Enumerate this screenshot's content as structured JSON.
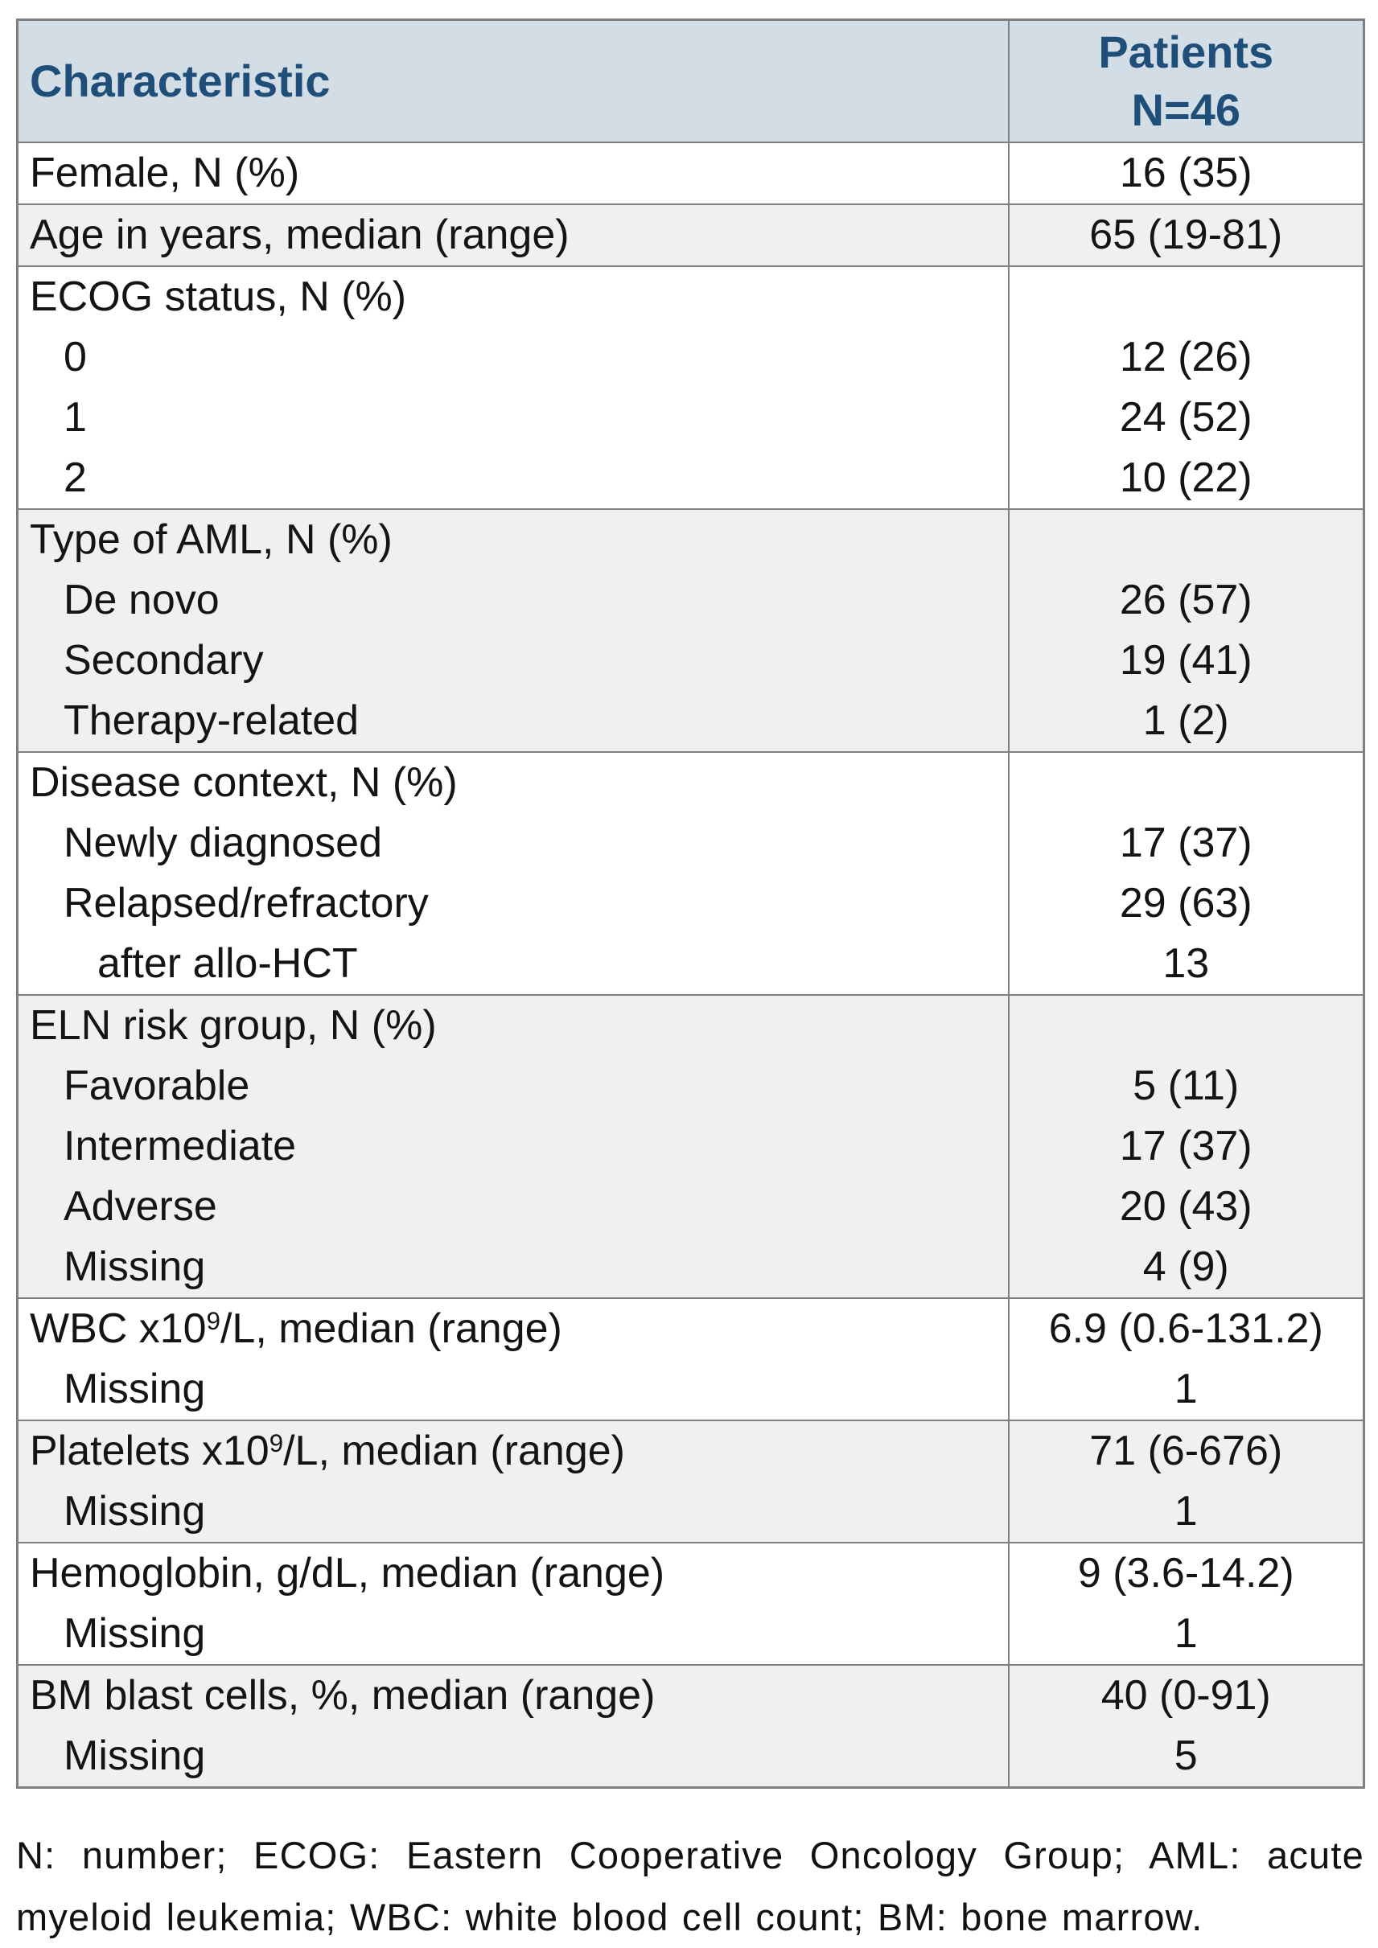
{
  "colors": {
    "header_bg": "#d2dde6",
    "header_text": "#1f4e79",
    "gray_row": "#f0f0f0",
    "border": "#7f7f7f",
    "text": "#141414"
  },
  "table": {
    "header": {
      "characteristic": "Characteristic",
      "patients_line1": "Patients",
      "patients_line2": "N=46"
    },
    "sections": [
      {
        "bg": "white",
        "lines": [
          {
            "label": [
              {
                "t": "Female, N (%)"
              }
            ],
            "indent": 0,
            "value": "16 (35)"
          }
        ]
      },
      {
        "bg": "gray",
        "lines": [
          {
            "label": [
              {
                "t": "Age in years, median (range)"
              }
            ],
            "indent": 0,
            "value": "65 (19-81)"
          }
        ]
      },
      {
        "bg": "white",
        "lines": [
          {
            "label": [
              {
                "t": "ECOG status, N (%)"
              }
            ],
            "indent": 0,
            "value": ""
          },
          {
            "label": [
              {
                "t": "0"
              }
            ],
            "indent": 1,
            "value": "12 (26)"
          },
          {
            "label": [
              {
                "t": "1"
              }
            ],
            "indent": 1,
            "value": "24 (52)"
          },
          {
            "label": [
              {
                "t": "2"
              }
            ],
            "indent": 1,
            "value": "10 (22)"
          }
        ]
      },
      {
        "bg": "gray",
        "lines": [
          {
            "label": [
              {
                "t": "Type of AML, N (%)"
              }
            ],
            "indent": 0,
            "value": ""
          },
          {
            "label": [
              {
                "t": "De novo"
              }
            ],
            "indent": 1,
            "value": "26 (57)"
          },
          {
            "label": [
              {
                "t": "Secondary"
              }
            ],
            "indent": 1,
            "value": "19 (41)"
          },
          {
            "label": [
              {
                "t": "Therapy-related"
              }
            ],
            "indent": 1,
            "value": "1 (2)"
          }
        ]
      },
      {
        "bg": "white",
        "lines": [
          {
            "label": [
              {
                "t": "Disease context, N (%)"
              }
            ],
            "indent": 0,
            "value": ""
          },
          {
            "label": [
              {
                "t": "Newly diagnosed"
              }
            ],
            "indent": 1,
            "value": "17 (37)"
          },
          {
            "label": [
              {
                "t": "Relapsed/refractory"
              }
            ],
            "indent": 1,
            "value": "29 (63)"
          },
          {
            "label": [
              {
                "t": "after allo-HCT"
              }
            ],
            "indent": 2,
            "value": "13"
          }
        ]
      },
      {
        "bg": "gray",
        "lines": [
          {
            "label": [
              {
                "t": "ELN risk group, N (%)"
              }
            ],
            "indent": 0,
            "value": ""
          },
          {
            "label": [
              {
                "t": "Favorable"
              }
            ],
            "indent": 1,
            "value": "5 (11)"
          },
          {
            "label": [
              {
                "t": "Intermediate"
              }
            ],
            "indent": 1,
            "value": "17 (37)"
          },
          {
            "label": [
              {
                "t": "Adverse"
              }
            ],
            "indent": 1,
            "value": "20 (43)"
          },
          {
            "label": [
              {
                "t": "Missing"
              }
            ],
            "indent": 1,
            "value": "4 (9)"
          }
        ]
      },
      {
        "bg": "white",
        "lines": [
          {
            "label": [
              {
                "t": "WBC x10"
              },
              {
                "t": "9",
                "sup": true
              },
              {
                "t": "/L, median (range)"
              }
            ],
            "indent": 0,
            "value": "6.9 (0.6-131.2)"
          },
          {
            "label": [
              {
                "t": "Missing"
              }
            ],
            "indent": 1,
            "value": "1"
          }
        ]
      },
      {
        "bg": "gray",
        "lines": [
          {
            "label": [
              {
                "t": "Platelets x10"
              },
              {
                "t": "9",
                "sup": true
              },
              {
                "t": "/L, median (range)"
              }
            ],
            "indent": 0,
            "value": "71 (6-676)"
          },
          {
            "label": [
              {
                "t": "Missing"
              }
            ],
            "indent": 1,
            "value": "1"
          }
        ]
      },
      {
        "bg": "white",
        "lines": [
          {
            "label": [
              {
                "t": "Hemoglobin, g/dL, median (range)"
              }
            ],
            "indent": 0,
            "value": "9 (3.6-14.2)"
          },
          {
            "label": [
              {
                "t": "Missing"
              }
            ],
            "indent": 1,
            "value": "1"
          }
        ]
      },
      {
        "bg": "gray",
        "lines": [
          {
            "label": [
              {
                "t": "BM blast cells, %, median (range)"
              }
            ],
            "indent": 0,
            "value": "40 (0-91)"
          },
          {
            "label": [
              {
                "t": "Missing"
              }
            ],
            "indent": 1,
            "value": "5"
          }
        ]
      }
    ]
  },
  "footnote": "N: number; ECOG: Eastern Cooperative Oncology Group; AML: acute myeloid leukemia; WBC: white blood cell count; BM: bone marrow."
}
